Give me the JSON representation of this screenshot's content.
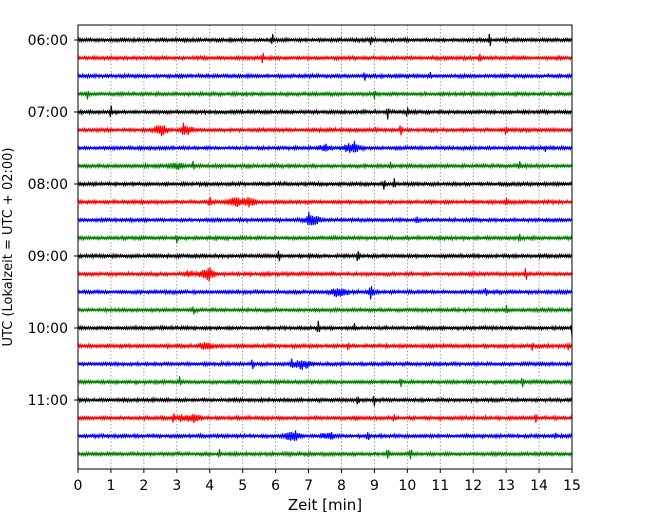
{
  "chart_data": {
    "type": "line",
    "chart_kind": "helicorder seismogram",
    "xlabel": "Zeit  [min]",
    "ylabel": "UTC (Lokalzeit = UTC + 02:00)",
    "xlim": [
      0,
      15
    ],
    "x_ticks": [
      "0",
      "1",
      "2",
      "3",
      "4",
      "5",
      "6",
      "7",
      "8",
      "9",
      "10",
      "11",
      "12",
      "13",
      "14",
      "15"
    ],
    "y_tick_labels": [
      "06:00",
      "07:00",
      "08:00",
      "09:00",
      "10:00",
      "11:00"
    ],
    "trace_start_times": [
      "06:00",
      "06:15",
      "06:30",
      "06:45",
      "07:00",
      "07:15",
      "07:30",
      "07:45",
      "08:00",
      "08:15",
      "08:30",
      "08:45",
      "09:00",
      "09:15",
      "09:30",
      "09:45",
      "10:00",
      "10:15",
      "10:30",
      "10:45",
      "11:00",
      "11:15",
      "11:30",
      "11:45"
    ],
    "minutes_per_trace": 15,
    "color_cycle": [
      "#000000",
      "#ff0000",
      "#0000ff",
      "#008000"
    ],
    "grid": {
      "vertical_dotted": true,
      "horizontal": false
    },
    "spikes": [
      [
        [
          5.9,
          1.0
        ],
        [
          8.9,
          0.7
        ],
        [
          12.5,
          0.9
        ]
      ],
      [
        [
          5.6,
          0.9
        ],
        [
          12.2,
          0.8
        ]
      ],
      [
        [
          8.7,
          0.8
        ],
        [
          10.7,
          0.6
        ]
      ],
      [
        [
          0.3,
          0.7
        ],
        [
          9.0,
          0.8
        ]
      ],
      [
        [
          1.0,
          0.8
        ],
        [
          9.4,
          1.0
        ],
        [
          10.0,
          0.6
        ]
      ],
      [
        [
          3.2,
          0.7
        ],
        [
          9.8,
          0.8
        ],
        [
          13.0,
          0.7
        ]
      ],
      [
        [
          8.4,
          0.8
        ],
        [
          14.2,
          0.6
        ]
      ],
      [
        [
          3.5,
          0.7
        ],
        [
          9.5,
          0.7
        ],
        [
          13.4,
          0.6
        ]
      ],
      [
        [
          9.3,
          0.8
        ],
        [
          9.6,
          0.7
        ]
      ],
      [
        [
          4.0,
          0.7
        ],
        [
          13.0,
          0.6
        ]
      ],
      [
        [
          7.0,
          0.6
        ],
        [
          10.3,
          0.5
        ]
      ],
      [
        [
          3.0,
          0.6
        ],
        [
          13.4,
          0.6
        ]
      ],
      [
        [
          6.1,
          0.8
        ],
        [
          8.5,
          0.8
        ]
      ],
      [
        [
          4.0,
          0.7
        ],
        [
          13.6,
          0.8
        ]
      ],
      [
        [
          8.9,
          0.7
        ],
        [
          12.4,
          0.6
        ]
      ],
      [
        [
          3.5,
          0.6
        ],
        [
          13.0,
          0.7
        ]
      ],
      [
        [
          7.3,
          0.8
        ],
        [
          8.4,
          0.7
        ],
        [
          15.0,
          1.0
        ]
      ],
      [
        [
          8.2,
          0.6
        ],
        [
          13.8,
          0.7
        ],
        [
          14.9,
          0.7
        ]
      ],
      [
        [
          5.3,
          0.7
        ],
        [
          6.5,
          0.6
        ]
      ],
      [
        [
          3.1,
          0.7
        ],
        [
          9.8,
          0.6
        ],
        [
          13.5,
          0.7
        ]
      ],
      [
        [
          8.5,
          0.8
        ],
        [
          9.0,
          0.6
        ]
      ],
      [
        [
          2.9,
          0.7
        ],
        [
          9.6,
          0.7
        ],
        [
          13.9,
          0.6
        ]
      ],
      [
        [
          6.6,
          0.7
        ],
        [
          8.8,
          0.6
        ],
        [
          14.5,
          0.7
        ]
      ],
      [
        [
          4.3,
          0.7
        ],
        [
          9.4,
          0.8
        ],
        [
          10.1,
          0.7
        ]
      ]
    ],
    "events": [
      [],
      [],
      [],
      [],
      [],
      [
        [
          2.5,
          0.55,
          0.3
        ],
        [
          3.3,
          0.45,
          0.25
        ]
      ],
      [
        [
          8.3,
          0.45,
          0.4
        ],
        [
          7.5,
          0.3,
          0.3
        ]
      ],
      [
        [
          3.0,
          0.3,
          0.3
        ]
      ],
      [],
      [
        [
          4.8,
          0.4,
          0.4
        ],
        [
          5.2,
          0.45,
          0.25
        ]
      ],
      [
        [
          7.1,
          0.5,
          0.35
        ]
      ],
      [],
      [],
      [
        [
          3.9,
          0.5,
          0.35
        ],
        [
          3.4,
          0.3,
          0.2
        ]
      ],
      [
        [
          7.9,
          0.45,
          0.4
        ],
        [
          8.9,
          0.3,
          0.2
        ]
      ],
      [],
      [],
      [
        [
          3.9,
          0.35,
          0.3
        ]
      ],
      [
        [
          6.8,
          0.4,
          0.4
        ]
      ],
      [],
      [],
      [
        [
          3.5,
          0.45,
          0.3
        ],
        [
          3.1,
          0.3,
          0.2
        ]
      ],
      [
        [
          6.5,
          0.4,
          0.35
        ],
        [
          7.6,
          0.3,
          0.3
        ]
      ],
      []
    ]
  }
}
